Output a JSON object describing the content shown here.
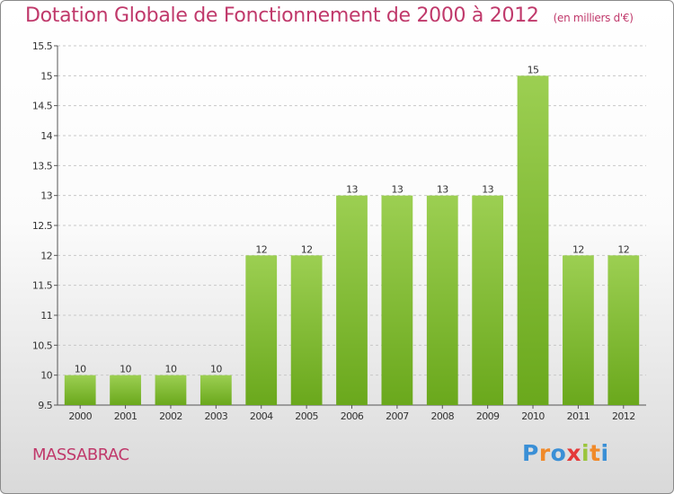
{
  "page": {
    "title": "Dotation Globale de Fonctionnement de 2000 à 2012",
    "unit_note": "(en milliers d'€)",
    "commune": "MASSABRAC",
    "logo_letters": [
      "P",
      "r",
      "o",
      "x",
      "i",
      "t",
      "i"
    ],
    "logo_colors": [
      "#3a8fd6",
      "#f08a2a",
      "#3a8fd6",
      "#e43a3a",
      "#9bc53d",
      "#f08a2a",
      "#3a8fd6"
    ]
  },
  "colors": {
    "title": "#c0396b",
    "bar_light": "#9ccf52",
    "bar_dark": "#6aa81c",
    "grid": "#c8c8c8"
  },
  "chart_data": {
    "type": "bar",
    "title": "Dotation Globale de Fonctionnement de 2000 à 2012",
    "xlabel": "",
    "ylabel": "en milliers d'€",
    "categories": [
      "2000",
      "2001",
      "2002",
      "2003",
      "2004",
      "2005",
      "2006",
      "2007",
      "2008",
      "2009",
      "2010",
      "2011",
      "2012"
    ],
    "values": [
      10,
      10,
      10,
      10,
      12,
      12,
      13,
      13,
      13,
      13,
      15,
      12,
      12
    ],
    "ylim": [
      9.5,
      15.5
    ],
    "yticks": [
      9.5,
      10,
      10.5,
      11,
      11.5,
      12,
      12.5,
      13,
      13.5,
      14,
      14.5,
      15,
      15.5
    ],
    "ytick_labels": [
      "9.5",
      "10",
      "10.5",
      "11",
      "11.5",
      "12",
      "12.5",
      "13",
      "13.5",
      "14",
      "14.5",
      "15",
      "15.5"
    ],
    "grid": true,
    "grid_style": "dashed-horizontal",
    "legend": "none"
  }
}
